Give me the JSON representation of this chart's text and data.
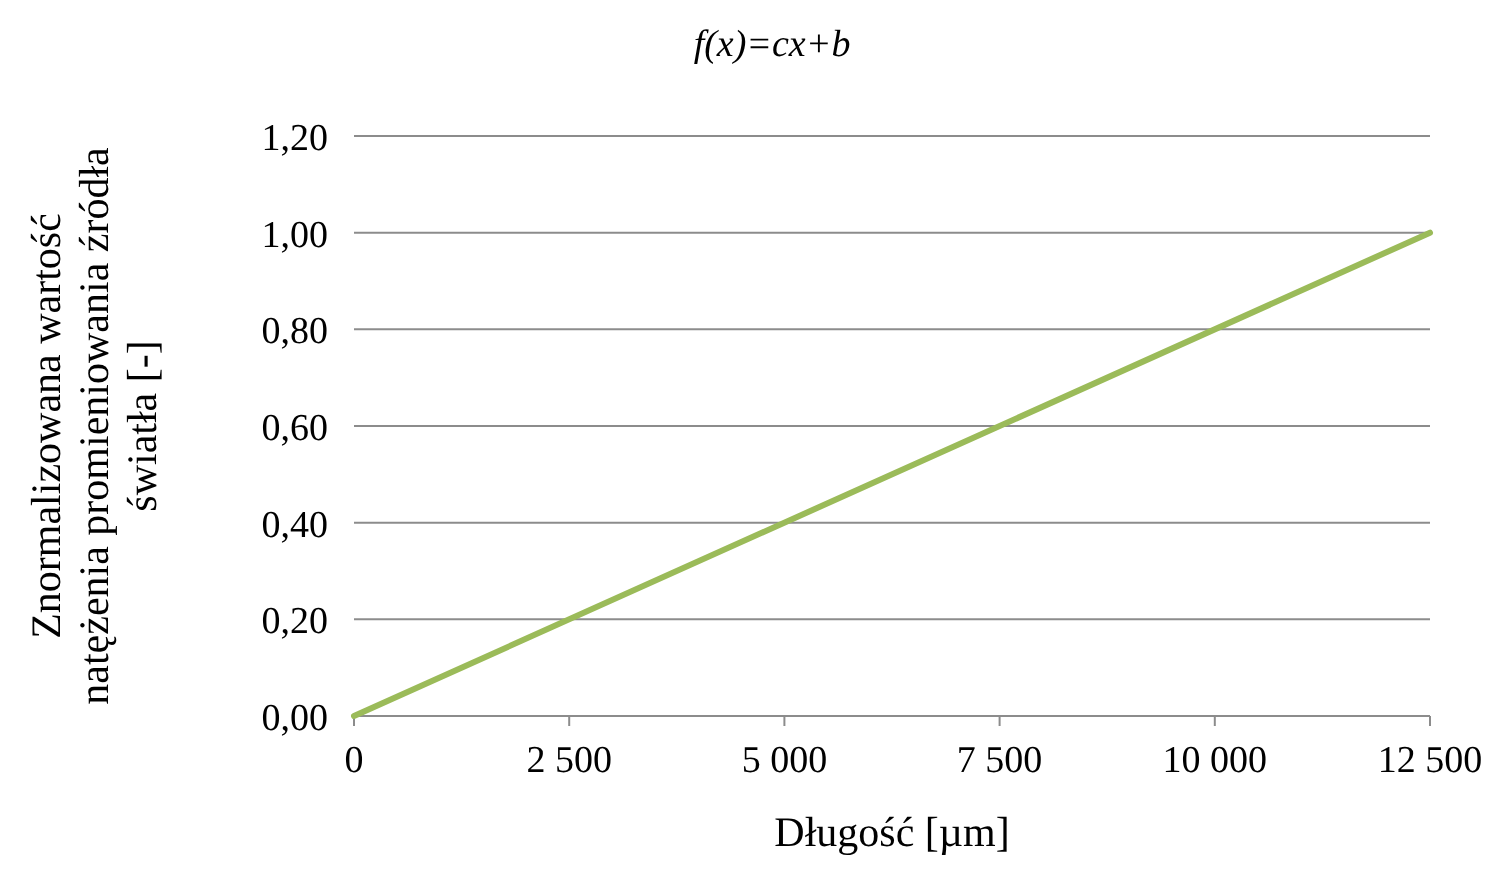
{
  "chart_data": {
    "type": "line",
    "title": "f(x)=cx+b",
    "xlabel": "Długość [µm]",
    "ylabel": "Znormalizowana wartość\nnatężenia promieniowania źródła\nświatła [-]",
    "x": [
      0,
      12500
    ],
    "series": [
      {
        "color": "#9bbb59",
        "values": [
          0,
          1
        ]
      }
    ],
    "xlim": [
      0,
      12500
    ],
    "ylim": [
      0,
      1.2
    ],
    "xticks": [
      0,
      {
        "value": 2500,
        "label": "2 500"
      },
      {
        "value": 5000,
        "label": "5 000"
      },
      {
        "value": 7500,
        "label": "7 500"
      },
      {
        "value": 10000,
        "label": "10 000"
      },
      {
        "value": 12500,
        "label": "12 500"
      }
    ],
    "yticks": [
      {
        "value": 0,
        "label": "0,00"
      },
      {
        "value": 0.2,
        "label": "0,20"
      },
      {
        "value": 0.4,
        "label": "0,40"
      },
      {
        "value": 0.6,
        "label": "0,60"
      },
      {
        "value": 0.8,
        "label": "0,80"
      },
      {
        "value": 1,
        "label": "1,00"
      },
      {
        "value": 1.2,
        "label": "1,20"
      }
    ],
    "grid": "y",
    "marker": "none",
    "line_style": "solid"
  }
}
